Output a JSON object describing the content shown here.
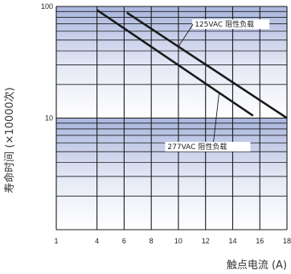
{
  "chart_data": {
    "type": "line",
    "xlabel": "触点电流 (A)",
    "ylabel": "寿命时间 (×10000次)",
    "x_ticks": [
      1,
      4,
      6,
      8,
      10,
      12,
      14,
      16,
      18
    ],
    "y_ticks": [
      10,
      100
    ],
    "ylim": [
      1,
      100
    ],
    "y_scale": "log",
    "grid": true,
    "series": [
      {
        "name": "125VAC 阻性负载",
        "x": [
          6.2,
          18
        ],
        "y": [
          88,
          10
        ]
      },
      {
        "name": "277VAC 阻性负载",
        "x": [
          4,
          15.5
        ],
        "y": [
          93,
          10.5
        ]
      }
    ],
    "annotations": [
      "125VAC 阻性负载",
      "277VAC 阻性负载"
    ],
    "colors": {
      "line": "#1a1a1a",
      "band_top": "#a9b5dd",
      "band_bottom": "#ffffff"
    }
  }
}
